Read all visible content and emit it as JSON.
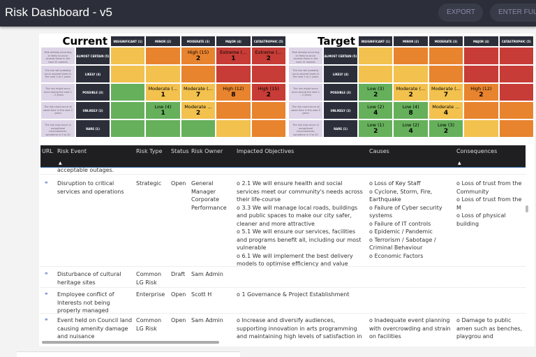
{
  "app": {
    "title": "Risk Dashboard - v5",
    "export_label": "EXPORT",
    "fullscreen_label": "ENTER FULL"
  },
  "colors": {
    "yellow": "#f2c14e",
    "orange": "#e8832e",
    "red": "#c73c36",
    "green": "#66b05c",
    "dark": "#2c2f3a",
    "desc": "#ddd4e7"
  },
  "matrix_columns": [
    "INSIGNIFICANT (1)",
    "MINOR (2)",
    "MODERATE (3)",
    "MAJOR (4)",
    "CATASTROPHIC (5)"
  ],
  "matrix_rows": [
    {
      "level": "ALMOST CERTAIN (5)",
      "desc": "Risk already occurring or likely to occur several times in the next 12 months"
    },
    {
      "level": "LIKELY (4)",
      "desc": "The risk will probably occur several times in the next 1 to 2 years"
    },
    {
      "level": "POSSIBLE (3)",
      "desc": "The risk might occur once during the next 1 – 2 years"
    },
    {
      "level": "UNLIKELY (2)",
      "desc": "The risk could occur at some time in the next 5 years"
    },
    {
      "level": "RARE (1)",
      "desc": "The risk may occur in exceptional circumstances, sometime in 5 to 30 years"
    }
  ],
  "matrices": [
    {
      "title": "Current",
      "cells": [
        [
          {
            "c": "yellow"
          },
          {
            "c": "orange"
          },
          {
            "c": "orange",
            "label": "High (15)",
            "count": "2"
          },
          {
            "c": "red",
            "label": "Extreme (…",
            "count": "1"
          },
          {
            "c": "red",
            "label": "Extreme (…",
            "count": "2"
          }
        ],
        [
          {
            "c": "yellow"
          },
          {
            "c": "yellow"
          },
          {
            "c": "orange"
          },
          {
            "c": "red"
          },
          {
            "c": "red"
          }
        ],
        [
          {
            "c": "green"
          },
          {
            "c": "yellow",
            "label": "Moderate (…",
            "count": "1"
          },
          {
            "c": "yellow",
            "label": "Moderate (…",
            "count": "7"
          },
          {
            "c": "orange",
            "label": "High (12)",
            "count": "8"
          },
          {
            "c": "red",
            "label": "High (15)",
            "count": "2"
          }
        ],
        [
          {
            "c": "green"
          },
          {
            "c": "green",
            "label": "Low (4)",
            "count": "1"
          },
          {
            "c": "yellow",
            "label": "Moderate …",
            "count": "2"
          },
          {
            "c": "orange"
          },
          {
            "c": "orange"
          }
        ],
        [
          {
            "c": "green"
          },
          {
            "c": "green"
          },
          {
            "c": "green"
          },
          {
            "c": "yellow"
          },
          {
            "c": "orange"
          }
        ]
      ]
    },
    {
      "title": "Target",
      "cells": [
        [
          {
            "c": "yellow"
          },
          {
            "c": "orange"
          },
          {
            "c": "orange"
          },
          {
            "c": "red"
          },
          {
            "c": "red"
          }
        ],
        [
          {
            "c": "yellow"
          },
          {
            "c": "yellow"
          },
          {
            "c": "orange"
          },
          {
            "c": "red"
          },
          {
            "c": "red"
          }
        ],
        [
          {
            "c": "green",
            "label": "Low (3)",
            "count": "2"
          },
          {
            "c": "yellow",
            "label": "Moderate (…",
            "count": "2"
          },
          {
            "c": "yellow",
            "label": "Moderate (…",
            "count": "7"
          },
          {
            "c": "orange",
            "label": "High (12)",
            "count": "2"
          },
          {
            "c": "red"
          }
        ],
        [
          {
            "c": "green",
            "label": "Low (2)",
            "count": "4"
          },
          {
            "c": "green",
            "label": "Low (4)",
            "count": "8"
          },
          {
            "c": "yellow",
            "label": "Moderate …",
            "count": "4"
          },
          {
            "c": "orange"
          },
          {
            "c": "orange"
          }
        ],
        [
          {
            "c": "green",
            "label": "Low (1)",
            "count": "2"
          },
          {
            "c": "green",
            "label": "Low (2)",
            "count": "4"
          },
          {
            "c": "green",
            "label": "Low (3)",
            "count": "2"
          },
          {
            "c": "yellow"
          },
          {
            "c": "orange"
          }
        ]
      ]
    }
  ],
  "table": {
    "columns": [
      "URL",
      "Risk Event",
      "Risk Type",
      "Status",
      "Risk Owner",
      "Impacted Objectives",
      "Causes",
      "Consequences"
    ],
    "partial_row_text": "acceptable outages.",
    "rows": [
      {
        "event": "Disruption to critical services and operations",
        "type": "Strategic",
        "status": "Open",
        "owner": "General Manager Corporate Performance",
        "objectives": "o 2.1 We will ensure health and social services meet our community's needs across their life-course\no 3.3 We will manage local roads, buildings and public spaces to make our city safer, cleaner and more attractive\no 5.1 We will ensure our services, facilities and programs benefit all, including our most vulnerable\no 6.1 We will implement the best delivery models to optimise efficiency and value",
        "causes": "o Loss of Key Staff\no Cyclone, Storm, Fire, Earthquake\no Failure of Cyber security systems\no Failure of IT controls\no Epidemic / Pandemic\no Terrorism / Sabotage / Criminal Behaviour\no Economic Factors",
        "consequences": "o Loss of trust from the Community\no Loss of trust from the M\no Loss of physical building"
      },
      {
        "event": "Disturbance of cultural heritage sites",
        "type": "Common LG Risk",
        "status": "Draft",
        "owner": "Sam Admin",
        "objectives": "",
        "causes": "",
        "consequences": ""
      },
      {
        "event": "Employee conflict of Interests not being properly managed",
        "type": "Enterprise",
        "status": "Open",
        "owner": "Scott H",
        "objectives": "o 1 Governance & Project Establishment",
        "causes": "",
        "consequences": ""
      },
      {
        "event": "Event held on Council land causing amenity damage and nuisance",
        "type": "Common LG Risk",
        "status": "Open",
        "owner": "Sam Admin",
        "objectives": "o Increase and diversify audiences, supporting innovation in arts programming and maintaining high levels of satisfaction in",
        "causes": "o Inadequate event planning with overcrowding and strain on facilities",
        "consequences": "o Damage to public amen such as benches, playgrou and landscaping"
      }
    ]
  }
}
